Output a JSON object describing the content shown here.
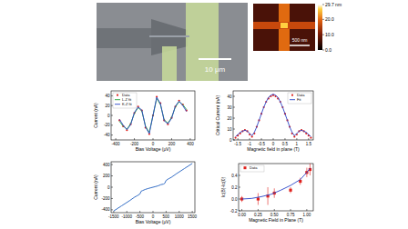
{
  "sem_image": {
    "scale_bar": "10 μm"
  },
  "afm_image": {
    "scale_bar": "500 nm",
    "colorbar": {
      "range": [
        0,
        29.7
      ],
      "ticks": [
        {
          "value": 29.7,
          "label": "29.7 nm"
        },
        {
          "value": 20,
          "label": "20.0"
        },
        {
          "value": 10,
          "label": "10.0"
        },
        {
          "value": 0,
          "label": "0.0"
        }
      ]
    }
  },
  "chart_data": [
    {
      "type": "line",
      "x_label": "Bias Voltage (μV)",
      "y_label": "Current (nA)",
      "xlim": [
        -450,
        450
      ],
      "xticks": [
        -400,
        -200,
        0,
        200,
        400
      ],
      "ylim": [
        -50,
        50
      ],
      "yticks": [
        -40,
        -20,
        0,
        20,
        40
      ],
      "legend": "top-left",
      "series": [
        {
          "name": "Data",
          "type": "scatter",
          "marker": "circle",
          "color": "#e0201b",
          "x": [
            -360,
            -320,
            -280,
            -240,
            -200,
            -160,
            -120,
            -80,
            -40,
            0,
            40,
            80,
            120,
            160,
            200,
            240,
            280,
            320,
            360
          ],
          "values": [
            -10,
            -22,
            -30,
            -18,
            5,
            18,
            10,
            -25,
            -38,
            0,
            38,
            25,
            -10,
            -18,
            -5,
            18,
            30,
            22,
            10
          ]
        },
        {
          "name": "L-Z fit",
          "type": "line",
          "color": "#22a035",
          "x": [
            -360,
            -320,
            -280,
            -240,
            -200,
            -160,
            -120,
            -80,
            -40,
            0,
            40,
            80,
            120,
            160,
            200,
            240,
            280,
            320,
            360
          ],
          "values": [
            -12,
            -22,
            -28,
            -17,
            4,
            16,
            9,
            -22,
            -35,
            0,
            35,
            22,
            -9,
            -16,
            -4,
            17,
            28,
            22,
            12
          ]
        },
        {
          "name": "K-Z fit",
          "type": "line",
          "color": "#2a45c8",
          "x": [
            -360,
            -320,
            -280,
            -240,
            -200,
            -160,
            -120,
            -80,
            -40,
            0,
            40,
            80,
            120,
            160,
            200,
            240,
            280,
            320,
            360
          ],
          "values": [
            -8,
            -20,
            -29,
            -19,
            6,
            17,
            11,
            -24,
            -37,
            0,
            37,
            24,
            -11,
            -17,
            -6,
            19,
            29,
            20,
            8
          ]
        }
      ]
    },
    {
      "type": "line",
      "x_label": "Magnetic field in plane (T)",
      "y_label": "Critical Current (nA)",
      "xlim": [
        -1.7,
        1.7
      ],
      "xticks": [
        -1.5,
        -1,
        -0.5,
        0,
        0.5,
        1,
        1.5
      ],
      "ylim": [
        0,
        45
      ],
      "yticks": [
        0,
        10,
        20,
        30,
        40
      ],
      "legend": "top-right",
      "series": [
        {
          "name": "Data",
          "type": "scatter",
          "marker": "circle",
          "color": "#e0201b",
          "x": [
            -1.6,
            -1.5,
            -1.4,
            -1.3,
            -1.2,
            -1.1,
            -1.0,
            -0.9,
            -0.8,
            -0.7,
            -0.6,
            -0.5,
            -0.4,
            -0.3,
            -0.2,
            -0.1,
            0,
            0.1,
            0.2,
            0.3,
            0.4,
            0.5,
            0.6,
            0.7,
            0.8,
            0.9,
            1.0,
            1.1,
            1.2,
            1.3,
            1.4,
            1.5,
            1.6
          ],
          "values": [
            2,
            4,
            6,
            8,
            9,
            8,
            5,
            3,
            6,
            12,
            18,
            24,
            30,
            35,
            38,
            40,
            41,
            40,
            38,
            35,
            30,
            24,
            18,
            12,
            6,
            3,
            5,
            8,
            9,
            8,
            6,
            4,
            2
          ]
        },
        {
          "name": "Fit",
          "type": "line",
          "color": "#2a45c8",
          "x": [
            -1.6,
            -1.5,
            -1.4,
            -1.3,
            -1.2,
            -1.1,
            -1.0,
            -0.9,
            -0.8,
            -0.7,
            -0.6,
            -0.5,
            -0.4,
            -0.3,
            -0.2,
            -0.1,
            0,
            0.1,
            0.2,
            0.3,
            0.4,
            0.5,
            0.6,
            0.7,
            0.8,
            0.9,
            1.0,
            1.1,
            1.2,
            1.3,
            1.4,
            1.5,
            1.6
          ],
          "values": [
            3,
            5,
            7,
            8,
            9,
            8,
            6,
            4,
            7,
            12,
            18,
            24,
            30,
            35,
            39,
            41,
            42,
            41,
            39,
            35,
            30,
            24,
            18,
            12,
            7,
            4,
            6,
            8,
            9,
            8,
            7,
            5,
            3
          ]
        }
      ]
    },
    {
      "type": "line",
      "x_label": "Bias Voltage (μV)",
      "y_label": "Current (nA)",
      "xlim": [
        -1600,
        1600
      ],
      "xticks": [
        -1500,
        -1000,
        -500,
        0,
        500,
        1000,
        1500
      ],
      "ylim": [
        -450,
        450
      ],
      "yticks": [
        -400,
        -200,
        0,
        200,
        400
      ],
      "series": [
        {
          "type": "line",
          "color": "#1f5fc0",
          "x": [
            -1500,
            -1200,
            -900,
            -700,
            -600,
            -500,
            -450,
            -400,
            -300,
            -200,
            -100,
            0,
            100,
            200,
            300,
            400,
            450,
            500,
            600,
            700,
            900,
            1200,
            1500
          ],
          "values": [
            -420,
            -330,
            -240,
            -175,
            -150,
            -120,
            -70,
            -60,
            -40,
            -25,
            -12,
            0,
            12,
            25,
            45,
            55,
            70,
            120,
            150,
            175,
            240,
            330,
            420
          ]
        }
      ]
    },
    {
      "type": "scatter",
      "x_label": "Magnetic Field in Plane (T)",
      "y_label": "Ic(B)-Ic(0)",
      "xlim": [
        -0.05,
        1.1
      ],
      "xticks": [
        {
          "value": 0,
          "label": "0.00"
        },
        {
          "value": 0.25,
          "label": "0.25"
        },
        {
          "value": 0.5,
          "label": "0.50"
        },
        {
          "value": 0.75,
          "label": "0.75"
        },
        {
          "value": 1,
          "label": "1.00"
        }
      ],
      "ylim": [
        -0.2,
        0.6
      ],
      "yticks": [
        {
          "value": -0.2,
          "label": "-0.2"
        },
        {
          "value": 0,
          "label": "0.0"
        },
        {
          "value": 0.2,
          "label": "0.2"
        },
        {
          "value": 0.4,
          "label": "0.4"
        }
      ],
      "legend": "top-left",
      "series": [
        {
          "name": "Data",
          "type": "scatter",
          "marker": "square",
          "color": "#e0201b",
          "x": [
            0,
            0.25,
            0.4,
            0.5,
            0.75,
            0.9,
            1.0,
            1.05
          ],
          "values": [
            0.0,
            0.0,
            0.05,
            0.1,
            0.15,
            0.3,
            0.45,
            0.5
          ],
          "errors": [
            0.05,
            0.1,
            0.15,
            0.08,
            0.05,
            0.06,
            0.08,
            0.1
          ]
        },
        {
          "type": "line",
          "color": "#2a45c8",
          "x": [
            0,
            0.15,
            0.3,
            0.45,
            0.6,
            0.75,
            0.9,
            1.0,
            1.05
          ],
          "values": [
            0,
            0.01,
            0.04,
            0.08,
            0.15,
            0.23,
            0.33,
            0.45,
            0.52
          ]
        }
      ]
    }
  ]
}
